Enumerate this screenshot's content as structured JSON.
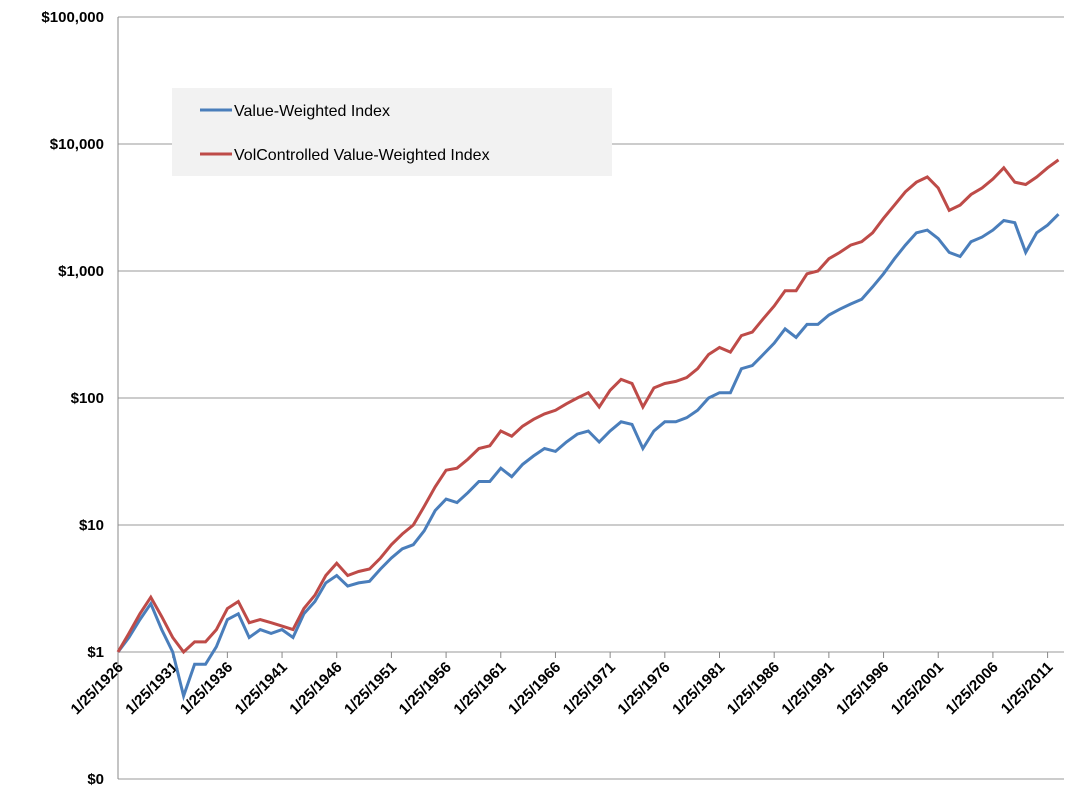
{
  "chart_data": {
    "type": "line",
    "log_y": true,
    "grid": true,
    "legend": "upper left",
    "x": [
      1926,
      1927,
      1928,
      1929,
      1930,
      1931,
      1932,
      1933,
      1934,
      1935,
      1936,
      1937,
      1938,
      1939,
      1940,
      1941,
      1942,
      1943,
      1944,
      1945,
      1946,
      1947,
      1948,
      1949,
      1950,
      1951,
      1952,
      1953,
      1954,
      1955,
      1956,
      1957,
      1958,
      1959,
      1960,
      1961,
      1962,
      1963,
      1964,
      1965,
      1966,
      1967,
      1968,
      1969,
      1970,
      1971,
      1972,
      1973,
      1974,
      1975,
      1976,
      1977,
      1978,
      1979,
      1980,
      1981,
      1982,
      1983,
      1984,
      1985,
      1986,
      1987,
      1988,
      1989,
      1990,
      1991,
      1992,
      1993,
      1994,
      1995,
      1996,
      1997,
      1998,
      1999,
      2000,
      2001,
      2002,
      2003,
      2004,
      2005,
      2006,
      2007,
      2008,
      2009,
      2010,
      2011,
      2012
    ],
    "series": [
      {
        "name": "Value-Weighted Index",
        "color": "#4a7ebb",
        "values": [
          1,
          1.3,
          1.8,
          2.4,
          1.5,
          1.0,
          0.45,
          0.8,
          0.8,
          1.1,
          1.8,
          2.0,
          1.3,
          1.5,
          1.4,
          1.5,
          1.3,
          2.0,
          2.5,
          3.5,
          4.0,
          3.3,
          3.5,
          3.6,
          4.5,
          5.5,
          6.5,
          7,
          9,
          13,
          16,
          15,
          18,
          22,
          22,
          28,
          24,
          30,
          35,
          40,
          38,
          45,
          52,
          55,
          45,
          55,
          65,
          62,
          40,
          55,
          65,
          65,
          70,
          80,
          100,
          110,
          110,
          170,
          180,
          220,
          270,
          350,
          300,
          380,
          380,
          450,
          500,
          550,
          600,
          750,
          950,
          1250,
          1600,
          2000,
          2100,
          1800,
          1400,
          1300,
          1700,
          1850,
          2100,
          2500,
          2400,
          1400,
          2000,
          2300,
          2800
        ]
      },
      {
        "name": "VolControlled Value-Weighted Index",
        "color": "#be4b48",
        "values": [
          1,
          1.4,
          2.0,
          2.7,
          1.9,
          1.3,
          1.0,
          1.2,
          1.2,
          1.5,
          2.2,
          2.5,
          1.7,
          1.8,
          1.7,
          1.6,
          1.5,
          2.2,
          2.8,
          4.0,
          5.0,
          4.0,
          4.3,
          4.5,
          5.5,
          7,
          8.5,
          10,
          14,
          20,
          27,
          28,
          33,
          40,
          42,
          55,
          50,
          60,
          68,
          75,
          80,
          90,
          100,
          110,
          85,
          115,
          140,
          130,
          85,
          120,
          130,
          135,
          145,
          170,
          220,
          250,
          230,
          310,
          330,
          420,
          530,
          700,
          700,
          950,
          1000,
          1250,
          1400,
          1600,
          1700,
          2000,
          2600,
          3300,
          4200,
          5000,
          5500,
          4500,
          3000,
          3300,
          4000,
          4500,
          5300,
          6500,
          5000,
          4800,
          5500,
          6500,
          7500
        ]
      }
    ],
    "xlim": [
      1926,
      2012.5
    ],
    "xticks": [
      {
        "value": 1926,
        "label": "1/25/1926"
      },
      {
        "value": 1931,
        "label": "1/25/1931"
      },
      {
        "value": 1936,
        "label": "1/25/1936"
      },
      {
        "value": 1941,
        "label": "1/25/1941"
      },
      {
        "value": 1946,
        "label": "1/25/1946"
      },
      {
        "value": 1951,
        "label": "1/25/1951"
      },
      {
        "value": 1956,
        "label": "1/25/1956"
      },
      {
        "value": 1961,
        "label": "1/25/1961"
      },
      {
        "value": 1966,
        "label": "1/25/1966"
      },
      {
        "value": 1971,
        "label": "1/25/1971"
      },
      {
        "value": 1976,
        "label": "1/25/1976"
      },
      {
        "value": 1981,
        "label": "1/25/1981"
      },
      {
        "value": 1986,
        "label": "1/25/1986"
      },
      {
        "value": 1991,
        "label": "1/25/1991"
      },
      {
        "value": 1996,
        "label": "1/25/1996"
      },
      {
        "value": 2001,
        "label": "1/25/2001"
      },
      {
        "value": 2006,
        "label": "1/25/2006"
      },
      {
        "value": 2011,
        "label": "1/25/2011"
      }
    ],
    "ylim": [
      0.1,
      100000
    ],
    "yticks": [
      {
        "value": 0.1,
        "label": "$0"
      },
      {
        "value": 1,
        "label": "$1"
      },
      {
        "value": 10,
        "label": "$10"
      },
      {
        "value": 100,
        "label": "$100"
      },
      {
        "value": 1000,
        "label": "$1,000"
      },
      {
        "value": 10000,
        "label": "$10,000"
      },
      {
        "value": 100000,
        "label": "$100,000"
      }
    ]
  }
}
